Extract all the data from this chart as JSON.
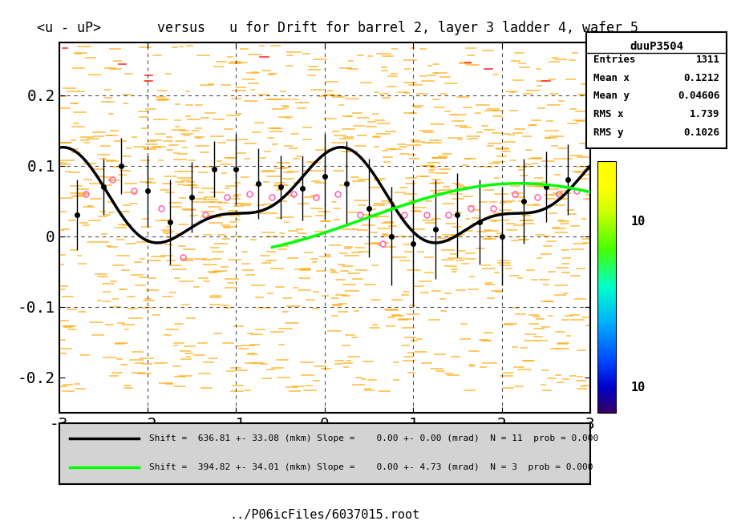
{
  "title": "<u - uP>       versus   u for Drift for barrel 2, layer 3 ladder 4, wafer 5",
  "xlabel": "../P06icFiles/6037015.root",
  "ylabel": "",
  "xlim": [
    -3,
    3
  ],
  "ylim": [
    -0.25,
    0.275
  ],
  "stats_title": "duuP3504",
  "stats": {
    "Entries": "1311",
    "Mean x": "0.1212",
    "Mean y": "0.04606",
    "RMS x": "1.739",
    "RMS y": "0.1026"
  },
  "legend_black": "Shift =  636.81 +- 33.08 (mkm) Slope =    0.00 +- 0.00 (mrad)  N = 11  prob = 0.000",
  "legend_green": "Shift =  394.82 +- 34.01 (mkm) Slope =    0.00 +- 4.73 (mrad)  N = 3  prob = 0.000",
  "bg_color": "#ffffff",
  "plot_bg_color": "#ffffff",
  "point_color": "#000000",
  "black_curve_color": "#000000",
  "green_curve_color": "#00FF00",
  "legend_panel_color": "#d3d3d3"
}
